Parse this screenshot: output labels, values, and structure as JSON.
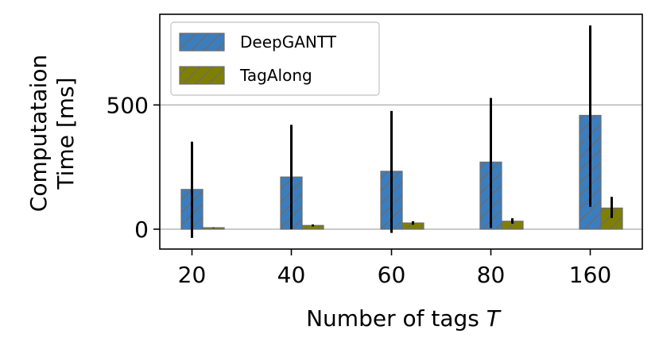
{
  "chart_data": {
    "type": "bar",
    "categories": [
      "20",
      "40",
      "60",
      "80",
      "160"
    ],
    "xlabel": "Number of tags",
    "xlabel_symbol": "T",
    "ylabel_line1": "Computataion",
    "ylabel_line2": "Time [ms]",
    "ylim": [
      -80,
      865
    ],
    "yticks": [
      0,
      500
    ],
    "ytick_labels": [
      "0",
      "500"
    ],
    "grid": "y",
    "legend_position": "top-left",
    "series": [
      {
        "name": "DeepGANTT",
        "color": "#3b7ebf",
        "hatch": "diagonal",
        "values": [
          160,
          210,
          233,
          270,
          458
        ],
        "err_low": [
          -35,
          0,
          -15,
          5,
          90
        ],
        "err_high": [
          352,
          420,
          476,
          528,
          820
        ]
      },
      {
        "name": "TagAlong",
        "color": "#808000",
        "hatch": "diagonal",
        "values": [
          6,
          15,
          25,
          32,
          85
        ],
        "err_low": [
          5,
          11,
          18,
          22,
          45
        ],
        "err_high": [
          7,
          19,
          32,
          44,
          130
        ]
      }
    ]
  }
}
